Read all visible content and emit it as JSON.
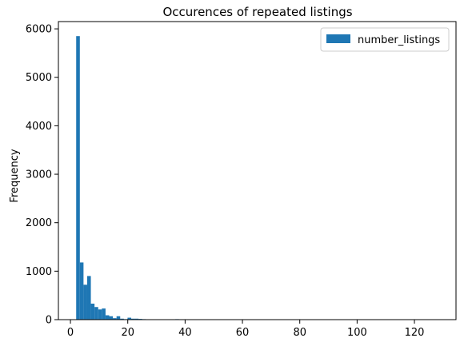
{
  "chart_data": {
    "type": "bar",
    "title": "Occurences of repeated listings",
    "xlabel": "",
    "ylabel": "Frequency",
    "xlim": [
      -4.2,
      134.5
    ],
    "ylim": [
      0,
      6150
    ],
    "xticks": [
      0,
      20,
      40,
      60,
      80,
      100,
      120
    ],
    "yticks": [
      0,
      1000,
      2000,
      3000,
      4000,
      5000,
      6000
    ],
    "bin_width": 1.28,
    "bins_start": 2,
    "series": [
      {
        "name": "number_listings",
        "color": "#1f77b4",
        "values": [
          5850,
          1180,
          720,
          900,
          330,
          260,
          210,
          230,
          90,
          70,
          30,
          70,
          20,
          10,
          40,
          20,
          20,
          15,
          10,
          5,
          0,
          5,
          0,
          0,
          0,
          0,
          0,
          10,
          0,
          0,
          0,
          0,
          0,
          0,
          0,
          0,
          0,
          0,
          0,
          0,
          0,
          0,
          0,
          0,
          0,
          0,
          0,
          0,
          0,
          0,
          0,
          0,
          0,
          0,
          0,
          0,
          0,
          0,
          0,
          0,
          0,
          0,
          0,
          0,
          0,
          0,
          0,
          0,
          0,
          0,
          0,
          0,
          0,
          0,
          0,
          0,
          0,
          0,
          0,
          0,
          0,
          0,
          0,
          0,
          0,
          0,
          0,
          0,
          0,
          0,
          0,
          0,
          0,
          0,
          0,
          0,
          0,
          0,
          0,
          2
        ]
      }
    ],
    "legend_position": "top-right",
    "grid": false
  }
}
